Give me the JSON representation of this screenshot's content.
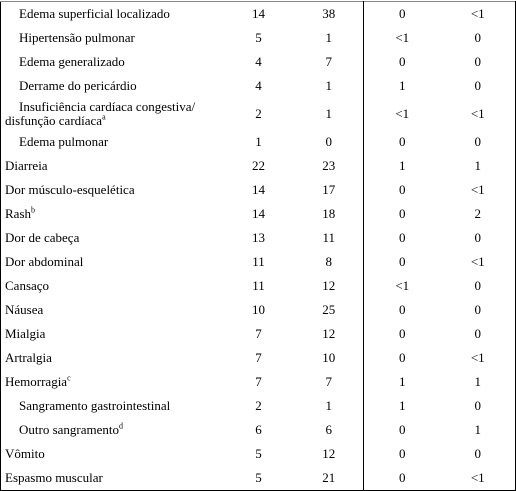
{
  "table": {
    "rows": [
      {
        "label": "Edema superficial localizado",
        "values": [
          14,
          38,
          0,
          "<1"
        ]
      },
      {
        "label": "Hipertensão pulmonar",
        "values": [
          5,
          1,
          "<1",
          0
        ]
      },
      {
        "label": "Edema generalizado",
        "values": [
          4,
          7,
          0,
          0
        ]
      },
      {
        "label": "Derrame do pericárdio",
        "values": [
          4,
          1,
          1,
          0
        ]
      },
      {
        "label": "Insuficiência cardíaca congestiva/ disfunção cardíaca",
        "note": "a",
        "values": [
          2,
          1,
          "<1",
          "<1"
        ]
      },
      {
        "label": "Edema pulmonar",
        "values": [
          1,
          0,
          0,
          0
        ]
      },
      {
        "label": "Diarreia",
        "values": [
          22,
          23,
          1,
          1
        ]
      },
      {
        "label": "Dor músculo-esquelética",
        "values": [
          14,
          17,
          0,
          "<1"
        ]
      },
      {
        "label": "Rash",
        "note": "b",
        "values": [
          14,
          18,
          0,
          2
        ]
      },
      {
        "label": "Dor de cabeça",
        "values": [
          13,
          11,
          0,
          0
        ]
      },
      {
        "label": "Dor abdominal",
        "values": [
          11,
          8,
          0,
          "<1"
        ]
      },
      {
        "label": "Cansaço",
        "values": [
          11,
          12,
          "<1",
          0
        ]
      },
      {
        "label": "Náusea",
        "values": [
          10,
          25,
          0,
          0
        ]
      },
      {
        "label": "Mialgia",
        "values": [
          7,
          12,
          0,
          0
        ]
      },
      {
        "label": "Artralgia",
        "values": [
          7,
          10,
          0,
          "<1"
        ]
      },
      {
        "label": "Hemorragia",
        "note": "c",
        "values": [
          7,
          7,
          1,
          1
        ]
      },
      {
        "label": "Sangramento gastrointestinal",
        "values": [
          2,
          1,
          1,
          0
        ]
      },
      {
        "label": "Outro sangramento",
        "note": "d",
        "values": [
          6,
          6,
          0,
          1
        ]
      },
      {
        "label": "Vômito",
        "values": [
          5,
          12,
          0,
          0
        ]
      },
      {
        "label": "Espasmo muscular",
        "values": [
          5,
          21,
          0,
          "<1"
        ]
      }
    ]
  }
}
